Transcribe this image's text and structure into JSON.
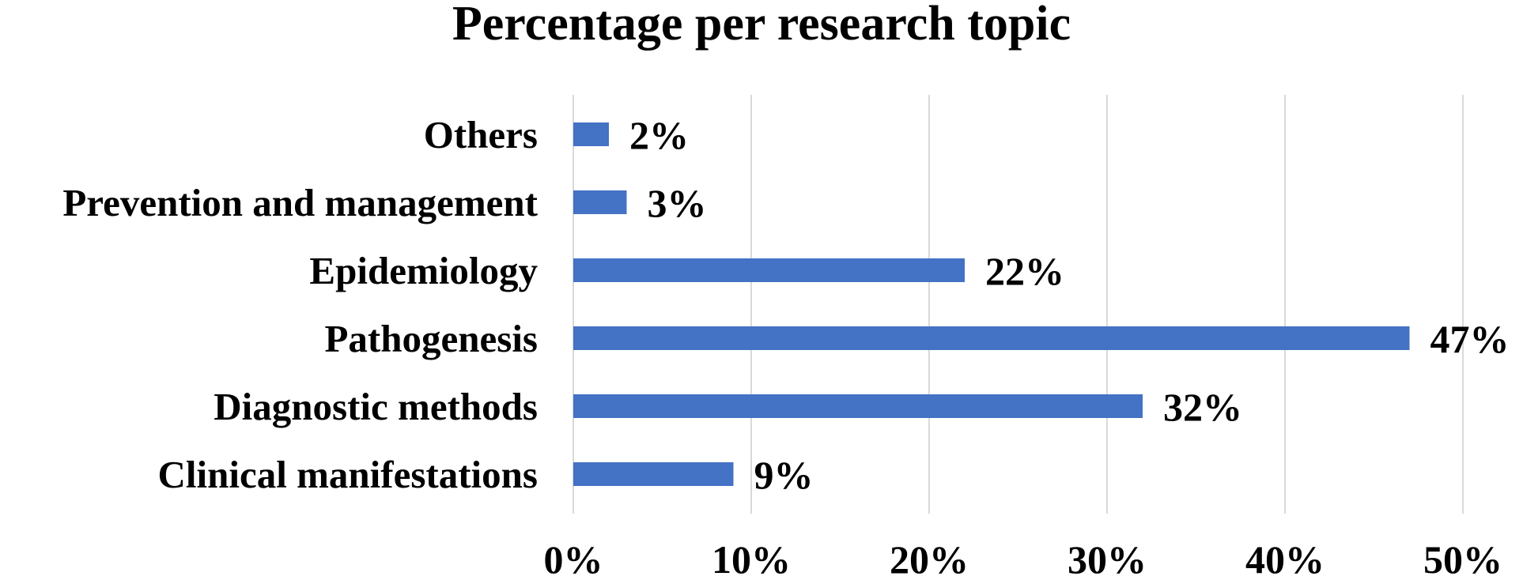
{
  "chart_data": {
    "type": "bar",
    "orientation": "horizontal",
    "title": "Percentage per research topic",
    "xlabel": "",
    "ylabel": "",
    "categories": [
      "Clinical manifestations",
      "Diagnostic methods",
      "Pathogenesis",
      "Epidemiology",
      "Prevention and management",
      "Others"
    ],
    "values": [
      9,
      32,
      47,
      22,
      3,
      2
    ],
    "value_labels": [
      "9%",
      "32%",
      "47%",
      "22%",
      "3%",
      "2%"
    ],
    "xlim": [
      0,
      50
    ],
    "xticks": [
      0,
      10,
      20,
      30,
      40,
      50
    ],
    "xtick_labels": [
      "0%",
      "10%",
      "20%",
      "30%",
      "40%",
      "50%"
    ],
    "grid": true,
    "legend": "none",
    "colors": {
      "bar": "#4472c4",
      "grid": "#d9d9d9",
      "text": "#000000"
    }
  }
}
